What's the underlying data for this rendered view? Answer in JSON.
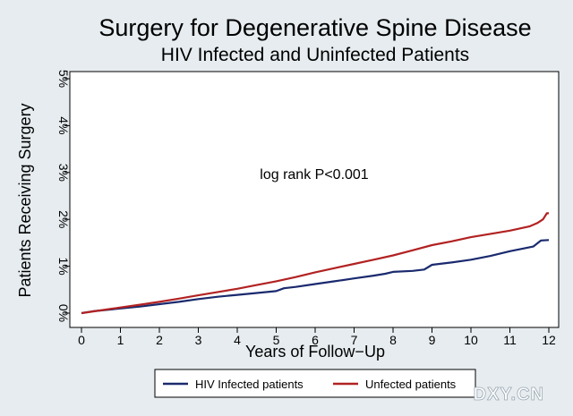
{
  "chart_data": {
    "type": "line",
    "title": "Surgery for Degenerative Spine Disease",
    "subtitle": "HIV Infected and Uninfected Patients",
    "xlabel": "Years of Follow−Up",
    "ylabel": "Patients Receiving Surgery",
    "xlim": [
      0,
      12
    ],
    "ylim": [
      0,
      5
    ],
    "x_ticks": [
      "0",
      "1",
      "2",
      "3",
      "4",
      "5",
      "6",
      "7",
      "8",
      "9",
      "10",
      "11",
      "12"
    ],
    "y_ticks": [
      "0%",
      "1%",
      "2%",
      "3%",
      "4%",
      "5%"
    ],
    "grid": false,
    "legend_position": "bottom",
    "annotation": "log rank P<0.001",
    "series": [
      {
        "name": "HIV Infected patients",
        "color": "#1a2a6e",
        "x": [
          0,
          0.3,
          1,
          1.5,
          2,
          2.5,
          3,
          3.5,
          4,
          4.5,
          5,
          5.2,
          5.5,
          6,
          6.5,
          7,
          7.5,
          7.8,
          8,
          8.5,
          8.8,
          9,
          9.5,
          10,
          10.5,
          11,
          11.3,
          11.6,
          11.8,
          12
        ],
        "y": [
          0,
          0.04,
          0.1,
          0.14,
          0.19,
          0.24,
          0.3,
          0.35,
          0.39,
          0.43,
          0.47,
          0.53,
          0.56,
          0.62,
          0.68,
          0.74,
          0.8,
          0.84,
          0.88,
          0.9,
          0.93,
          1.03,
          1.08,
          1.14,
          1.22,
          1.32,
          1.37,
          1.42,
          1.55,
          1.56
        ]
      },
      {
        "name": "Unfected patients",
        "color": "#b22222",
        "x": [
          0,
          0.5,
          1,
          1.5,
          2,
          2.5,
          3,
          3.5,
          4,
          4.5,
          5,
          5.5,
          6,
          6.5,
          7,
          7.5,
          8,
          8.5,
          9,
          9.5,
          10,
          10.5,
          11,
          11.5,
          11.7,
          11.85,
          11.95,
          12
        ],
        "y": [
          0,
          0.06,
          0.12,
          0.18,
          0.24,
          0.31,
          0.38,
          0.45,
          0.52,
          0.6,
          0.68,
          0.77,
          0.87,
          0.96,
          1.05,
          1.14,
          1.23,
          1.34,
          1.45,
          1.53,
          1.62,
          1.69,
          1.76,
          1.85,
          1.92,
          2.0,
          2.13,
          2.13
        ]
      }
    ]
  },
  "watermark": "DXY.CN"
}
